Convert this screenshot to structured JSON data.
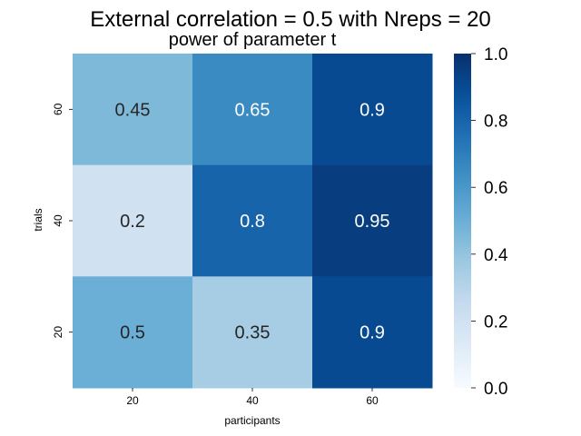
{
  "chart_data": {
    "type": "heatmap",
    "title": "External correlation = 0.5 with Nreps = 20",
    "subtitle": "power of parameter t",
    "xlabel": "participants",
    "ylabel": "trials",
    "x_categories": [
      "20",
      "40",
      "60"
    ],
    "y_categories": [
      "60",
      "40",
      "20"
    ],
    "values": [
      [
        0.45,
        0.65,
        0.9
      ],
      [
        0.2,
        0.8,
        0.95
      ],
      [
        0.5,
        0.35,
        0.9
      ]
    ],
    "value_labels": [
      [
        "0.45",
        "0.65",
        "0.9"
      ],
      [
        "0.2",
        "0.8",
        "0.95"
      ],
      [
        "0.5",
        "0.35",
        "0.9"
      ]
    ],
    "colormap": "Blues",
    "vmin": 0.0,
    "vmax": 1.0,
    "colorbar_ticks": [
      "0.0",
      "0.2",
      "0.4",
      "0.6",
      "0.8",
      "1.0"
    ],
    "colorbar_tick_values": [
      0.0,
      0.2,
      0.4,
      0.6,
      0.8,
      1.0
    ]
  }
}
